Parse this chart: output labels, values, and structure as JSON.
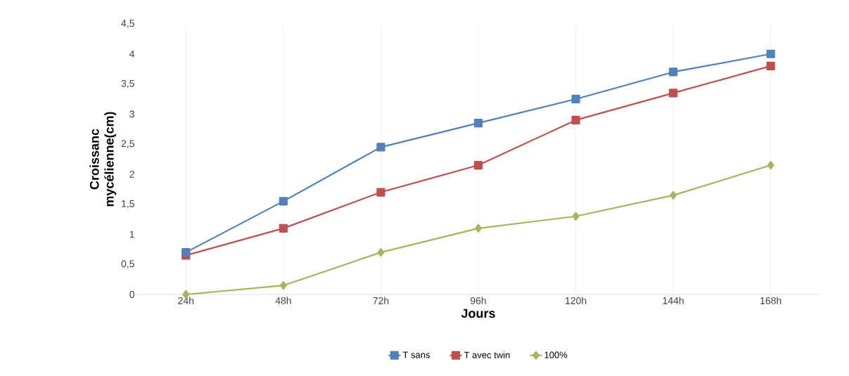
{
  "chart_data": {
    "type": "line",
    "xlabel": "Jours",
    "ylabel": "Croissanc mycélienne(cm)",
    "categories": [
      "24h",
      "48h",
      "72h",
      "96h",
      "120h",
      "144h",
      "168h"
    ],
    "series": [
      {
        "name": "T sans",
        "color": "#4f81bd",
        "marker": "square",
        "values": [
          0.7,
          1.55,
          2.45,
          2.85,
          3.25,
          3.7,
          4.0
        ]
      },
      {
        "name": "T avec twin",
        "color": "#c0504d",
        "marker": "square",
        "values": [
          0.65,
          1.1,
          1.7,
          2.15,
          2.9,
          3.35,
          3.8
        ]
      },
      {
        "name": "100%",
        "color": "#9bbb59",
        "marker": "diamond",
        "values": [
          0,
          0.15,
          0.7,
          1.1,
          1.3,
          1.65,
          2.15
        ]
      }
    ],
    "ylim": [
      0,
      4.5
    ],
    "yticks": [
      0,
      {
        "value": 0.5,
        "label": "0,5"
      },
      1,
      {
        "value": 1.5,
        "label": "1,5"
      },
      2,
      {
        "value": 2.5,
        "label": "2,5"
      },
      3,
      {
        "value": 3.5,
        "label": "3,5"
      },
      4,
      {
        "value": 4.5,
        "label": "4,5"
      }
    ],
    "grid": "x",
    "legend": "bottom"
  }
}
